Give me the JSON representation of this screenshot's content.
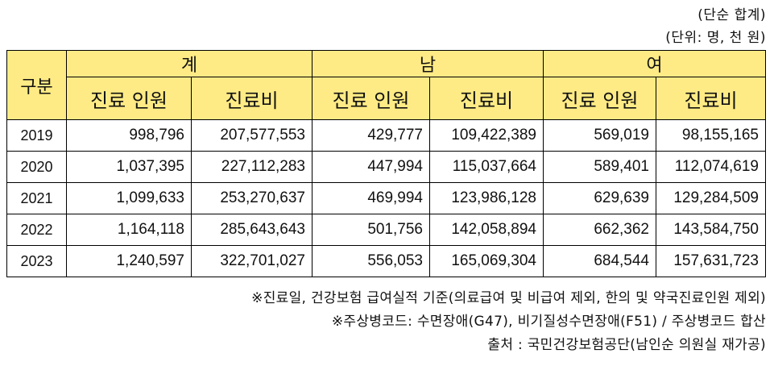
{
  "units": {
    "line1": "(단순 합계)",
    "line2": "(단위: 명, 천 원)"
  },
  "table": {
    "row_header": "구분",
    "groups": [
      "계",
      "남",
      "여"
    ],
    "subheaders": [
      "진료 인원",
      "진료비",
      "진료 인원",
      "진료비",
      "진료 인원",
      "진료비"
    ],
    "rows": [
      {
        "year": "2019",
        "cells": [
          "998,796",
          "207,577,553",
          "429,777",
          "109,422,389",
          "569,019",
          "98,155,165"
        ]
      },
      {
        "year": "2020",
        "cells": [
          "1,037,395",
          "227,112,283",
          "447,994",
          "115,037,664",
          "589,401",
          "112,074,619"
        ]
      },
      {
        "year": "2021",
        "cells": [
          "1,099,633",
          "253,270,637",
          "469,994",
          "123,986,128",
          "629,639",
          "129,284,509"
        ]
      },
      {
        "year": "2022",
        "cells": [
          "1,164,118",
          "285,643,643",
          "501,756",
          "142,058,894",
          "662,362",
          "143,584,750"
        ]
      },
      {
        "year": "2023",
        "cells": [
          "1,240,597",
          "322,701,027",
          "556,053",
          "165,069,304",
          "684,544",
          "157,631,723"
        ]
      }
    ]
  },
  "notes": {
    "note1": "※진료일, 건강보험 급여실적 기준(의료급여 및 비급여 제외, 한의 및 약국진료인원 제외)",
    "note2": "※주상병코드: 수면장애(G47), 비기질성수면장애(F51) / 주상병코드 합산",
    "source": "출처 : 국민건강보험공단(남인순 의원실 재가공)"
  }
}
